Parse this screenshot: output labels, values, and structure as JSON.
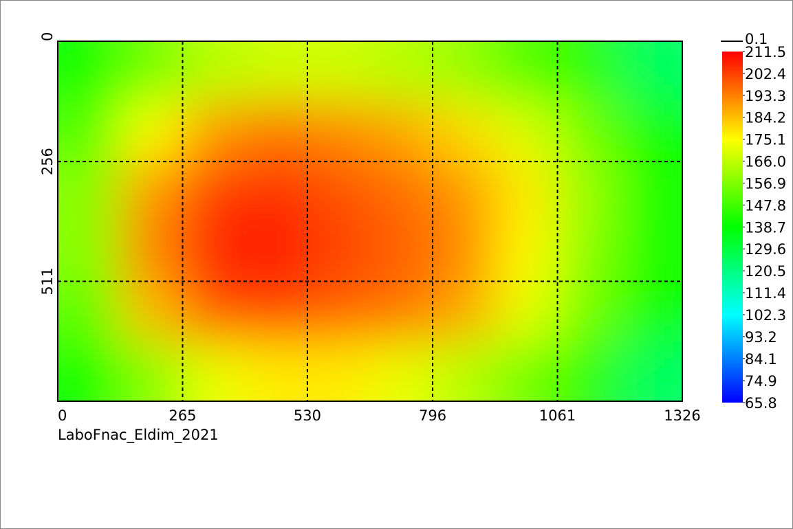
{
  "chart_data": {
    "type": "heatmap",
    "caption": "LaboFnac_Eldim_2021",
    "xlim": [
      0,
      1326
    ],
    "xticks": [
      0,
      265,
      530,
      796,
      1061,
      1326
    ],
    "ylim": [
      0,
      766
    ],
    "yticks": [
      0,
      256,
      511
    ],
    "y_reversed": true,
    "grid": true,
    "zlim": [
      65.8,
      211.5
    ],
    "colorscale": [
      "#0000ff",
      "#00ffff",
      "#00ff00",
      "#ffff00",
      "#ff0000"
    ],
    "colorbar_ticks": [
      211.5,
      202.4,
      193.3,
      184.2,
      175.1,
      {
        "value": 166,
        "label": "166.0"
      },
      156.9,
      147.8,
      138.7,
      129.6,
      120.5,
      111.4,
      102.3,
      93.2,
      84.1,
      74.9,
      65.8
    ],
    "legend_line_label": "0.1",
    "values": [
      [
        140,
        155,
        165,
        168,
        168,
        165,
        160,
        150,
        145,
        125
      ],
      [
        150,
        175,
        190,
        195,
        192,
        188,
        180,
        170,
        155,
        140
      ],
      [
        158,
        190,
        203,
        205,
        200,
        196,
        190,
        178,
        160,
        142
      ],
      [
        158,
        193,
        207,
        208,
        202,
        198,
        192,
        176,
        158,
        142
      ],
      [
        152,
        185,
        200,
        202,
        198,
        195,
        188,
        172,
        155,
        140
      ],
      [
        140,
        158,
        172,
        178,
        178,
        172,
        165,
        155,
        145,
        125
      ]
    ]
  }
}
